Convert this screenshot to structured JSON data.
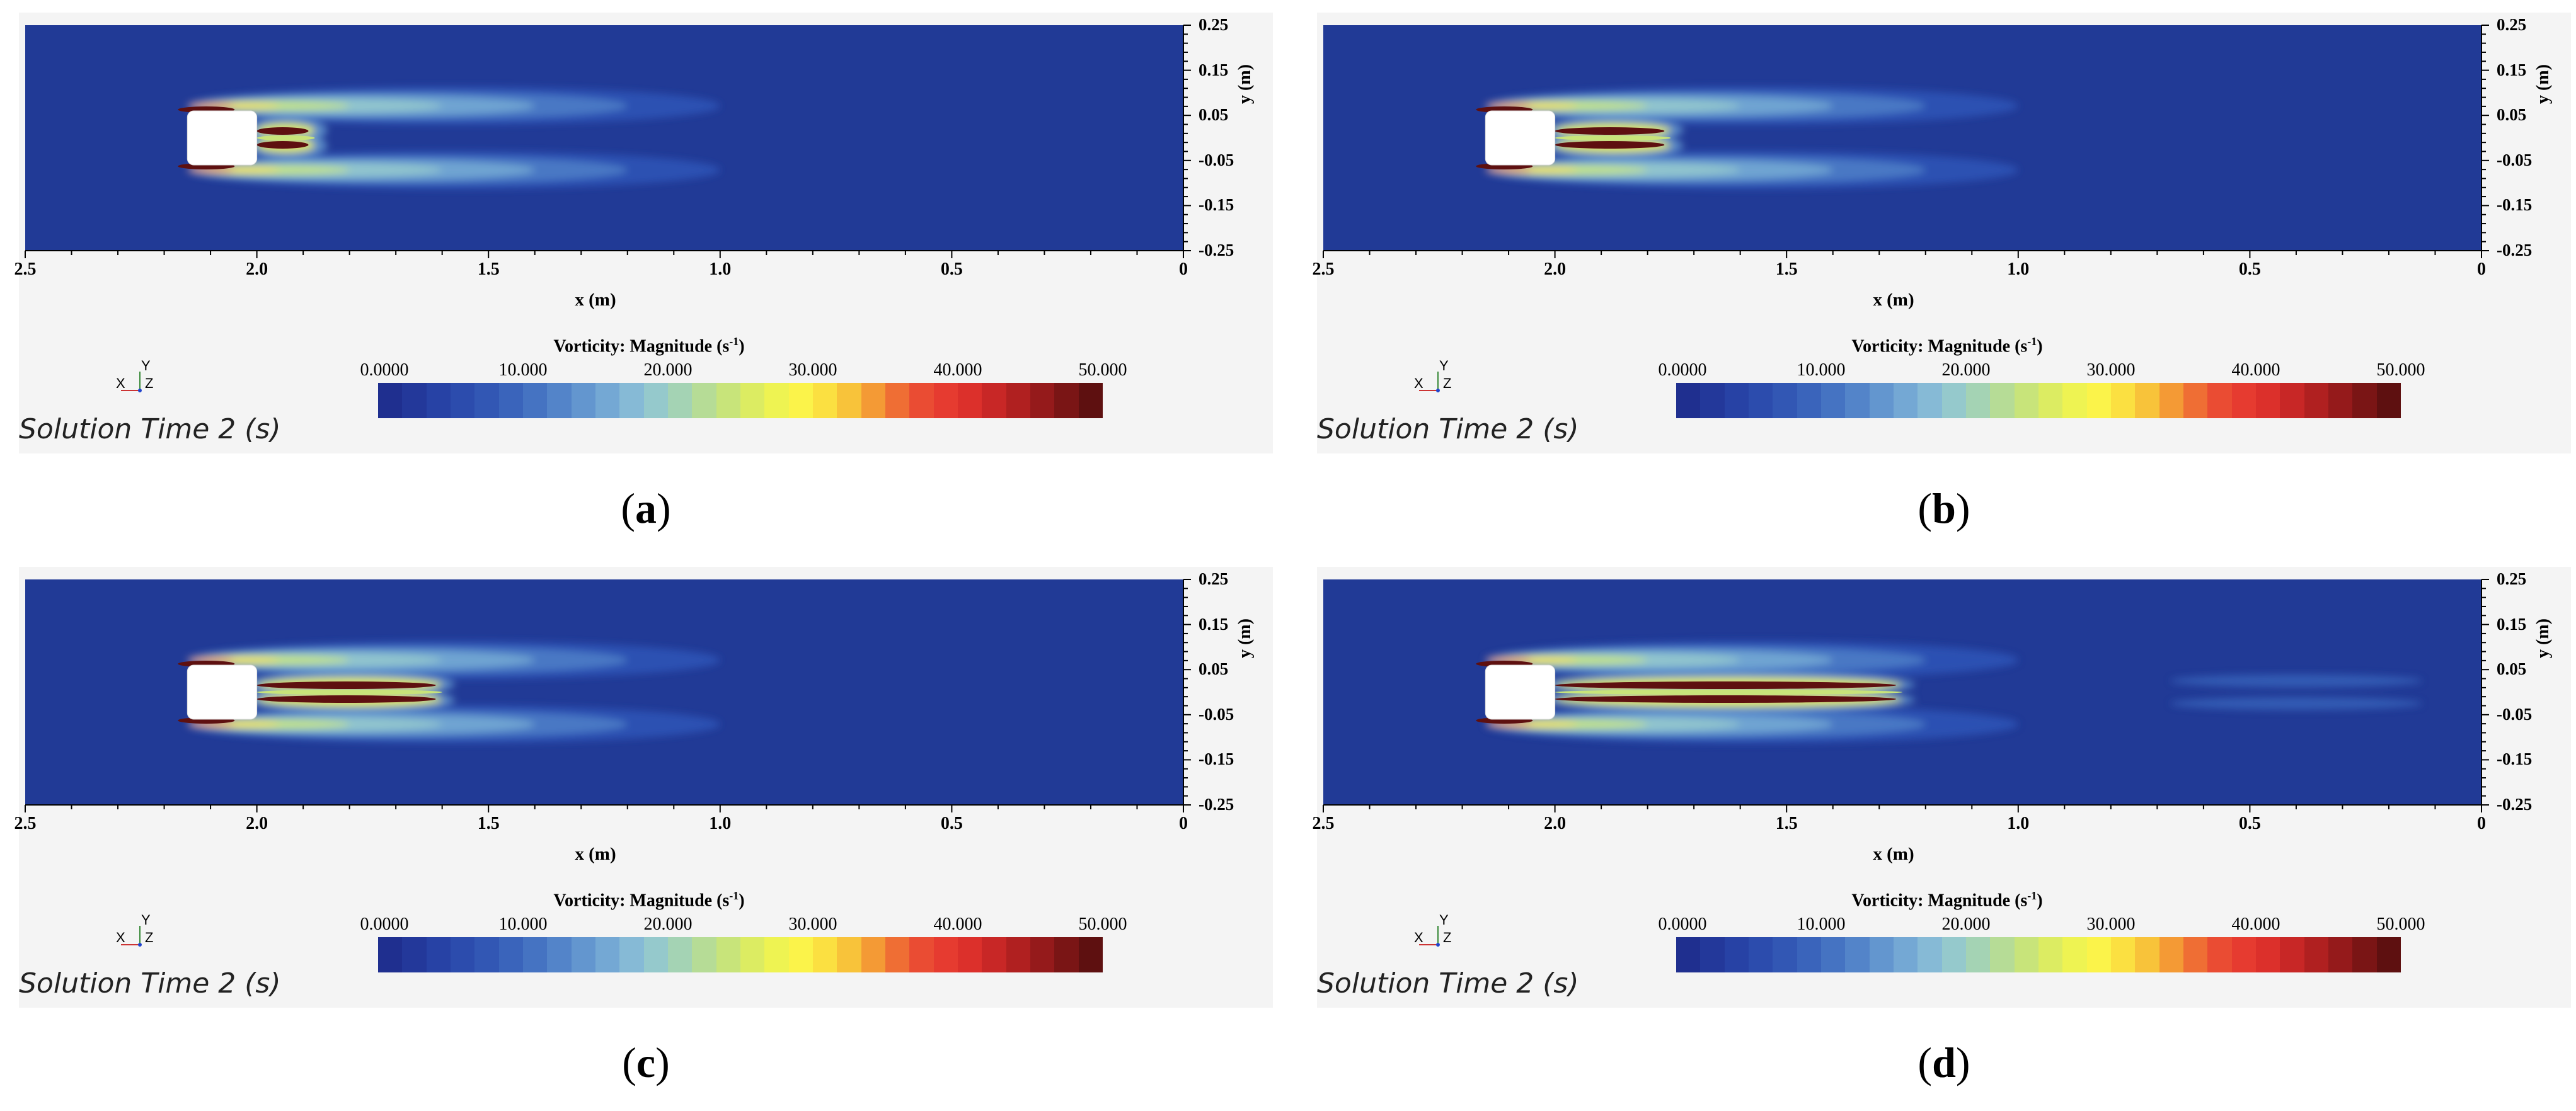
{
  "panels": [
    {
      "id": "a",
      "caption": "a",
      "x_axis": {
        "label": "x (m)",
        "ticks": [
          "2.5",
          "2.0",
          "1.5",
          "1.0",
          "0.5",
          "0"
        ]
      },
      "y_axis": {
        "label": "y (m)",
        "ticks": [
          "0.25",
          "0.15",
          "0.05",
          "-0.05",
          "-0.15",
          "-0.25"
        ]
      },
      "colorbar": {
        "title": "Vorticity: Magnitude (s",
        "title_sup": "-1",
        "title_end": ")",
        "ticks": [
          "0.0000",
          "10.000",
          "20.000",
          "30.000",
          "40.000",
          "50.000"
        ]
      },
      "triad": {
        "y": "Y",
        "x": "X",
        "z": "Z"
      },
      "solution_time": "Solution Time 2 (s)",
      "wake_length_fraction": 0.05
    },
    {
      "id": "b",
      "caption": "b",
      "x_axis": {
        "label": "x (m)",
        "ticks": [
          "2.5",
          "2.0",
          "1.5",
          "1.0",
          "0.5",
          "0"
        ]
      },
      "y_axis": {
        "label": "y (m)",
        "ticks": [
          "0.25",
          "0.15",
          "0.05",
          "-0.05",
          "-0.15",
          "-0.25"
        ]
      },
      "colorbar": {
        "title": "Vorticity: Magnitude (s",
        "title_sup": "-1",
        "title_end": ")",
        "ticks": [
          "0.0000",
          "10.000",
          "20.000",
          "30.000",
          "40.000",
          "50.000"
        ]
      },
      "triad": {
        "y": "Y",
        "x": "X",
        "z": "Z"
      },
      "solution_time": "Solution Time 2 (s)",
      "wake_length_fraction": 0.1
    },
    {
      "id": "c",
      "caption": "c",
      "x_axis": {
        "label": "x (m)",
        "ticks": [
          "2.5",
          "2.0",
          "1.5",
          "1.0",
          "0.5",
          "0"
        ]
      },
      "y_axis": {
        "label": "y (m)",
        "ticks": [
          "0.25",
          "0.15",
          "0.05",
          "-0.05",
          "-0.15",
          "-0.25"
        ]
      },
      "colorbar": {
        "title": "Vorticity: Magnitude (s",
        "title_sup": "-1",
        "title_end": ")",
        "ticks": [
          "0.0000",
          "10.000",
          "20.000",
          "30.000",
          "40.000",
          "50.000"
        ]
      },
      "triad": {
        "y": "Y",
        "x": "X",
        "z": "Z"
      },
      "solution_time": "Solution Time 2 (s)",
      "wake_length_fraction": 0.16
    },
    {
      "id": "d",
      "caption": "d",
      "x_axis": {
        "label": "x (m)",
        "ticks": [
          "2.5",
          "2.0",
          "1.5",
          "1.0",
          "0.5",
          "0"
        ]
      },
      "y_axis": {
        "label": "y (m)",
        "ticks": [
          "0.25",
          "0.15",
          "0.05",
          "-0.05",
          "-0.15",
          "-0.25"
        ]
      },
      "colorbar": {
        "title": "Vorticity: Magnitude (s",
        "title_sup": "-1",
        "title_end": ")",
        "ticks": [
          "0.0000",
          "10.000",
          "20.000",
          "30.000",
          "40.000",
          "50.000"
        ]
      },
      "triad": {
        "y": "Y",
        "x": "X",
        "z": "Z"
      },
      "solution_time": "Solution Time 2 (s)",
      "wake_length_fraction": 0.3
    }
  ],
  "colorscale": [
    "#1f2f8f",
    "#23389a",
    "#2742a5",
    "#2c4cad",
    "#3257b4",
    "#3a64bb",
    "#4573c2",
    "#5384c9",
    "#6396cf",
    "#74a8d4",
    "#86bad6",
    "#95c9cc",
    "#a4d3b4",
    "#b6dc96",
    "#c8e47a",
    "#dcec62",
    "#eef352",
    "#fbf34a",
    "#fbe041",
    "#f8c33a",
    "#f49a35",
    "#ef6e34",
    "#ea4c33",
    "#e63b30",
    "#dc302b",
    "#c82726",
    "#b02020",
    "#951a1b",
    "#7a1515",
    "#5e1010"
  ],
  "background_color": "#213a96",
  "body_color": "#ffffff"
}
